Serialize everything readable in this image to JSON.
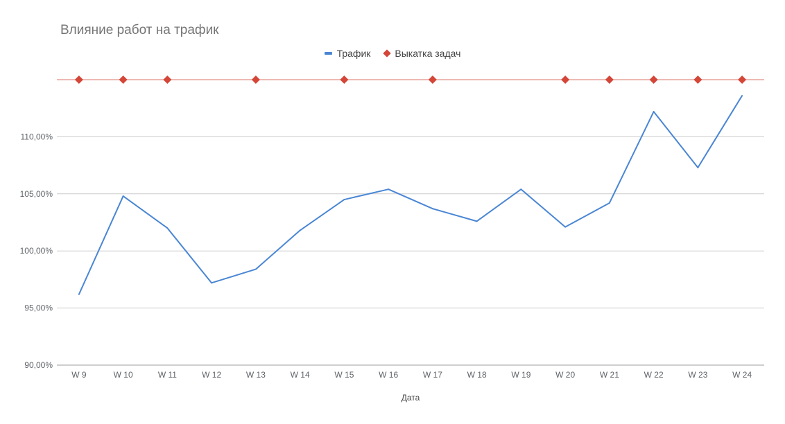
{
  "chart_data": {
    "type": "line",
    "title": "Влияние работ на трафик",
    "xlabel": "Дата",
    "ylabel": "",
    "categories": [
      "W 9",
      "W 10",
      "W 11",
      "W 12",
      "W 13",
      "W 14",
      "W 15",
      "W 16",
      "W 17",
      "W 18",
      "W 19",
      "W 20",
      "W 21",
      "W 22",
      "W 23",
      "W 24"
    ],
    "ylim": [
      90,
      115
    ],
    "yticks": [
      90,
      95,
      100,
      105,
      110
    ],
    "ytick_labels": [
      "90,00%",
      "95,00%",
      "100,00%",
      "105,00%",
      "110,00%"
    ],
    "grid": true,
    "legend_position": "top",
    "series": [
      {
        "name": "Трафик",
        "kind": "line",
        "color": "#4a86d4",
        "values": [
          96.2,
          104.8,
          102.0,
          97.2,
          98.4,
          101.8,
          104.5,
          105.4,
          103.7,
          102.6,
          105.4,
          102.1,
          104.2,
          112.2,
          107.3,
          113.6
        ]
      },
      {
        "name": "Выкатка задач",
        "kind": "marker",
        "marker": "diamond",
        "color": "#d44638",
        "line_color": "#e8a29a",
        "level": 115,
        "categories": [
          "W 9",
          "W 10",
          "W 11",
          "W 13",
          "W 15",
          "W 17",
          "W 20",
          "W 21",
          "W 22",
          "W 23",
          "W 24"
        ]
      }
    ]
  }
}
